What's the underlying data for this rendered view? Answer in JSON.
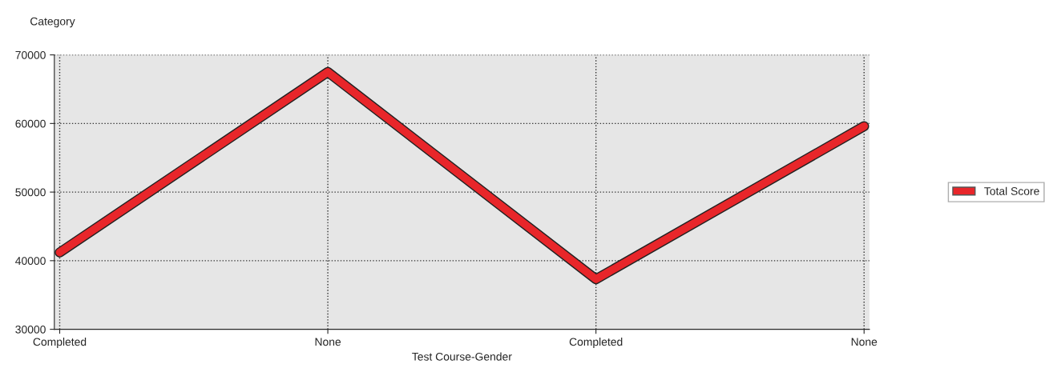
{
  "chart_data": {
    "type": "line",
    "xlabel": "Test Course-Gender",
    "ylabel": "Category",
    "categories": [
      "Completed",
      "None",
      "Completed",
      "None"
    ],
    "series": [
      {
        "name": "Total Score",
        "color": "#e8262a",
        "values": [
          41200,
          67500,
          37300,
          59600
        ]
      }
    ],
    "ylim": [
      30000,
      70000
    ],
    "yticks": [
      30000,
      40000,
      50000,
      60000,
      70000
    ],
    "grid": true,
    "legend": "right",
    "line_style": "solid"
  }
}
